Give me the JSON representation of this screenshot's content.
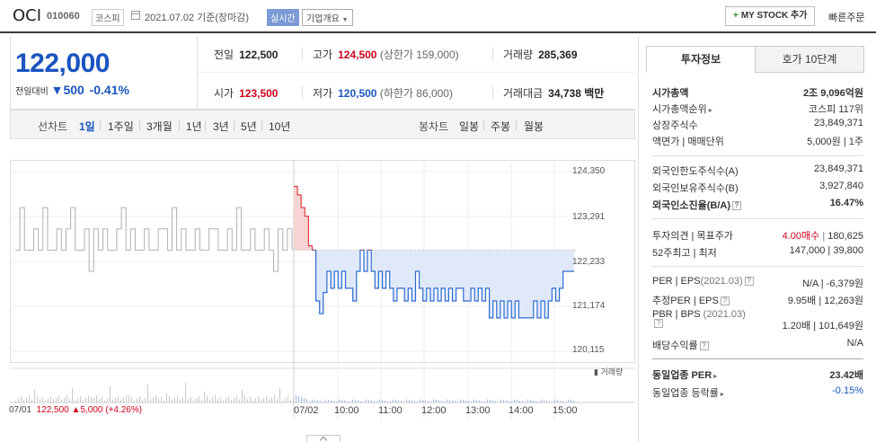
{
  "header": {
    "name": "OCI",
    "code": "010060",
    "market": "코스피",
    "date": "2021.07.02 기준(장마감)",
    "realtime": "실시간",
    "corp": "기업개요",
    "mystock": "MY STOCK 추가",
    "quick": "빠른주문"
  },
  "price": {
    "current": "122,000",
    "diff_label": "전일대비",
    "diff_value": "500",
    "diff_pct": "-0.41%"
  },
  "quotes": {
    "prev_label": "전일",
    "prev": "122,500",
    "high_label": "고가",
    "high": "124,500",
    "upper": "(상한가 159,000)",
    "volume_label": "거래량",
    "volume": "285,369",
    "open_label": "시가",
    "open": "123,500",
    "low_label": "저가",
    "low": "120,500",
    "lower": "(하한가 86,000)",
    "amount_label": "거래대금",
    "amount": "34,738 백만"
  },
  "period": {
    "label": "선차트",
    "items": [
      "1일",
      "1주일",
      "3개월",
      "1년",
      "3년",
      "5년",
      "10년"
    ],
    "bong_label": "봉차트",
    "bongs": [
      "일봉",
      "주봉",
      "월봉"
    ]
  },
  "chart_data": {
    "type": "line",
    "yticks": [
      "124,350",
      "123,291",
      "122,233",
      "121,174",
      "120,115"
    ],
    "ylim": [
      120115,
      124350
    ],
    "prev_close": 122500,
    "xticks": [
      "07/01",
      "07/02",
      "10:00",
      "11:00",
      "12:00",
      "13:00",
      "14:00",
      "15:00"
    ],
    "prev_day_info": "07/01",
    "prev_day_price": "122,500",
    "prev_day_change": "5,000 (+4.26%)",
    "volume_label": "거래량",
    "series": [
      {
        "values": [
          122500,
          123500,
          122500,
          122500,
          123000,
          122500,
          123500,
          122500,
          122500,
          123000,
          122500,
          123000,
          123500,
          122500,
          122500,
          123000,
          122000,
          123000,
          122500,
          123000,
          122500,
          122500,
          123000,
          123500,
          122500,
          123000,
          122500,
          122500,
          123000,
          122500,
          122500,
          123000,
          123000,
          122500,
          123500,
          122500,
          123000,
          122500,
          122500,
          123000,
          122500,
          122500,
          123000,
          123000,
          122500,
          122500,
          123000,
          122500,
          123500,
          122500,
          122500,
          123000,
          122500,
          122500,
          123000,
          122500,
          122000,
          123000,
          122500,
          123000,
          122500
        ]
      },
      {
        "values": [
          124000,
          123800,
          123500,
          123300,
          122600,
          122500,
          121300,
          121000,
          121500,
          122000,
          121600,
          122000,
          121600,
          122000,
          121600,
          121600,
          121300,
          122000,
          122500,
          122000,
          122500,
          122000,
          121600,
          122000,
          121600,
          122000,
          121600,
          121300,
          121600,
          121600,
          121300,
          121600,
          121300,
          122000,
          121600,
          121300,
          121600,
          121300,
          121600,
          121300,
          121600,
          121300,
          121600,
          121300,
          121600,
          121600,
          121300,
          121300,
          121600,
          121300,
          121600,
          121300,
          121600,
          120900,
          121300,
          120900,
          121300,
          120900,
          121300,
          120900,
          121300,
          120900,
          120900,
          120900,
          120900,
          121300,
          120900,
          121300,
          120900,
          121300,
          121600,
          121300,
          121600,
          122000,
          122000,
          122000,
          122000
        ]
      }
    ]
  },
  "right": {
    "tab1": "투자정보",
    "tab2": "호가 10단계",
    "mcap_label": "시가총액",
    "mcap": "2조 9,096억원",
    "mcap_rank_label": "시가총액순위",
    "mcap_rank": "코스피 117위",
    "shares_label": "상장주식수",
    "shares": "23,849,371",
    "par_label": "액면가 | 매매단위",
    "par": "5,000원 | 1주",
    "foreign_limit_label": "외국인한도주식수(A)",
    "foreign_limit": "23,849,371",
    "foreign_hold_label": "외국인보유주식수(B)",
    "foreign_hold": "3,927,840",
    "foreign_ratio_label": "외국인소진율(B/A)",
    "foreign_ratio": "16.47%",
    "opinion_label": "투자의견 | 목표주가",
    "opinion": "4.00매수",
    "target": "180,625",
    "w52_label": "52주최고 | 최저",
    "w52": "147,000 | 39,800",
    "per_label": "PER | EPS",
    "per_period": "(2021.03)",
    "per": "N/A | -6,379원",
    "eper_label": "추정PER | EPS",
    "eper": "9.95배 | 12,263원",
    "pbr_label": "PBR | BPS",
    "pbr_period": "(2021.03)",
    "pbr": "1.20배 | 101,649원",
    "div_label": "배당수익률",
    "div": "N/A",
    "sector_per_label": "동일업종 PER",
    "sector_per": "23.42배",
    "sector_rate_label": "동일업종 등락률",
    "sector_rate": "-0.15%"
  }
}
